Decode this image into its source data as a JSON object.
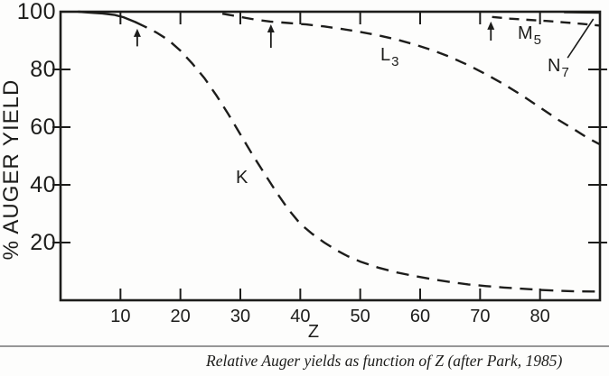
{
  "colors": {
    "ink": "#1d1d1b",
    "divider": "#979797",
    "background": "#fdfdfc"
  },
  "caption": {
    "text": "Relative Auger yields as function of Z (after Park, 1985)"
  },
  "chart_data": {
    "type": "line",
    "title": "",
    "xlabel": "Z",
    "ylabel": "% AUGER YIELD",
    "xlim": [
      0,
      90
    ],
    "ylim": [
      0,
      100
    ],
    "grid": false,
    "legend_position": "labels-on-curves",
    "x_ticks": [
      10,
      20,
      30,
      40,
      50,
      60,
      70,
      80
    ],
    "y_ticks": [
      20,
      40,
      60,
      80
    ],
    "y_tick_labels": [
      {
        "value": 100,
        "label": "100"
      },
      {
        "value": 80,
        "label": "80"
      },
      {
        "value": 60,
        "label": "60"
      },
      {
        "value": 40,
        "label": "40"
      },
      {
        "value": 20,
        "label": "20"
      }
    ],
    "series": [
      {
        "name": "K",
        "label_main": "K",
        "label_sub": "",
        "dash": true,
        "solid_until": 12.5,
        "points": [
          [
            3,
            100
          ],
          [
            5,
            99.7
          ],
          [
            7,
            99.4
          ],
          [
            9,
            98.9
          ],
          [
            10.5,
            98.1
          ],
          [
            12.5,
            96.4
          ],
          [
            14,
            94.9
          ],
          [
            16,
            92.8
          ],
          [
            18,
            90.2
          ],
          [
            20,
            86.5
          ],
          [
            22,
            82
          ],
          [
            24,
            77
          ],
          [
            26,
            71
          ],
          [
            28,
            64.5
          ],
          [
            30,
            57.5
          ],
          [
            32,
            50.5
          ],
          [
            34,
            44
          ],
          [
            36,
            37.5
          ],
          [
            38,
            31.5
          ],
          [
            40,
            26.5
          ],
          [
            42,
            23
          ],
          [
            44,
            20
          ],
          [
            46,
            17.4
          ],
          [
            48,
            15.2
          ],
          [
            50,
            13.4
          ],
          [
            53,
            11.3
          ],
          [
            56,
            9.7
          ],
          [
            59,
            8.4
          ],
          [
            62,
            7.3
          ],
          [
            65,
            6.3
          ],
          [
            68,
            5.5
          ],
          [
            71,
            4.9
          ],
          [
            74,
            4.4
          ],
          [
            77,
            4
          ],
          [
            80,
            3.6
          ],
          [
            83,
            3.3
          ],
          [
            86,
            3.1
          ],
          [
            90,
            3
          ]
        ]
      },
      {
        "name": "L3",
        "label_main": "L",
        "label_sub": "3",
        "dash": true,
        "points": [
          [
            27,
            99.3
          ],
          [
            29,
            98.6
          ],
          [
            31,
            97.8
          ],
          [
            33,
            97.1
          ],
          [
            35,
            96.6
          ],
          [
            38,
            96.1
          ],
          [
            41,
            95.6
          ],
          [
            44,
            94.9
          ],
          [
            47,
            94
          ],
          [
            50,
            93
          ],
          [
            53,
            91.8
          ],
          [
            56,
            90.4
          ],
          [
            59,
            88.7
          ],
          [
            62,
            86.7
          ],
          [
            65,
            84.3
          ],
          [
            68,
            81.5
          ],
          [
            71,
            78.3
          ],
          [
            74,
            74.8
          ],
          [
            77,
            71
          ],
          [
            80,
            66.8
          ],
          [
            83,
            62.6
          ],
          [
            86,
            58.8
          ],
          [
            88,
            56.2
          ],
          [
            90,
            54
          ]
        ]
      },
      {
        "name": "M5",
        "label_main": "M",
        "label_sub": "5",
        "dash": true,
        "points": [
          [
            72,
            98.2
          ],
          [
            75,
            97.6
          ],
          [
            78,
            97.2
          ],
          [
            81,
            96.8
          ],
          [
            84,
            96.3
          ],
          [
            87,
            95.8
          ],
          [
            90,
            95.2
          ]
        ]
      },
      {
        "name": "N7",
        "label_main": "N",
        "label_sub": "7",
        "dash": false,
        "note": "coincides with the 100% top line at far right; identified by pointer line",
        "points": [
          [
            84,
            99.8
          ],
          [
            90,
            99.7
          ]
        ]
      }
    ],
    "arrows": [
      {
        "z": 12.8,
        "v_from": 88.0,
        "v_to": 93.8
      },
      {
        "z": 35.1,
        "v_from": 87.5,
        "v_to": 95.3
      },
      {
        "z": 71.8,
        "v_from": 90.0,
        "v_to": 96.3
      }
    ],
    "n7_pointer": {
      "from": {
        "z": 84.6,
        "v": 84.0
      },
      "to": {
        "z": 88.9,
        "v": 97.5
      }
    }
  }
}
